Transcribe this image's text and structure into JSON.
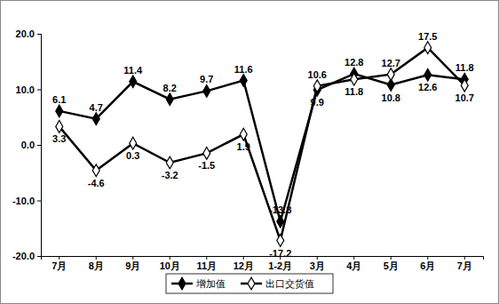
{
  "chart_data": {
    "type": "line",
    "categories": [
      "7月",
      "8月",
      "9月",
      "10月",
      "11月",
      "12月",
      "1-2月",
      "3月",
      "4月",
      "5月",
      "6月",
      "7月"
    ],
    "series": [
      {
        "name": "增加值",
        "color": "#000000",
        "marker": "filled-diamond",
        "values": [
          6.1,
          4.7,
          11.4,
          8.2,
          9.7,
          11.6,
          -13.8,
          9.9,
          12.8,
          10.8,
          12.6,
          11.8
        ]
      },
      {
        "name": "出口交货值",
        "color": "#000000",
        "marker": "open-diamond",
        "values": [
          3.3,
          -4.6,
          0.3,
          -3.2,
          -1.5,
          1.9,
          -17.2,
          10.6,
          11.8,
          12.7,
          17.5,
          10.7
        ]
      }
    ],
    "ylim": [
      -20,
      20
    ],
    "yticks": [
      {
        "value": -20,
        "label": "-20.0"
      },
      {
        "value": -10,
        "label": "-10.0"
      },
      {
        "value": 0,
        "label": "0.0"
      },
      {
        "value": 10,
        "label": "10.0"
      },
      {
        "value": 20,
        "label": "20.0"
      }
    ],
    "grid": false,
    "legend": "bottom",
    "data_labels": true
  }
}
